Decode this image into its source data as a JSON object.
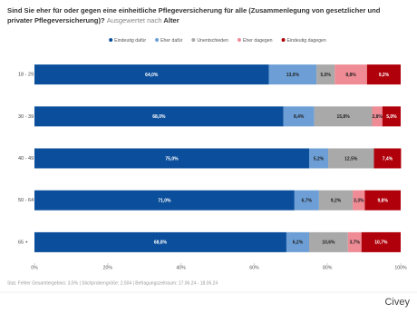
{
  "chart_data": {
    "type": "stacked-bar-horizontal",
    "title": "Sind Sie eher für oder gegen eine einheitliche Pflegeversicherung für alle (Zusammenlegung von gesetzlicher und privater Pflegeversicherung)?",
    "subtitle_prefix": "Ausgewertet nach",
    "subtitle": "Alter",
    "categories": [
      "18 - 29",
      "30 - 39",
      "40 - 49",
      "50 - 64",
      "65 +"
    ],
    "series": [
      {
        "name": "Eindeutig dafür",
        "color": "#0b4f9c",
        "values": [
          64.0,
          68.0,
          75.0,
          71.0,
          68.8
        ],
        "value_labels": [
          "64,0%",
          "68,0%",
          "75,0%",
          "71,0%",
          "68,8%"
        ]
      },
      {
        "name": "Eher dafür",
        "color": "#6d9fd6",
        "values": [
          13.0,
          8.4,
          5.2,
          6.7,
          6.2
        ],
        "value_labels": [
          "13,0%",
          "8,4%",
          "5,2%",
          "6,7%",
          "6,2%"
        ]
      },
      {
        "name": "Unentschieden",
        "color": "#a9a9a9",
        "values": [
          5.0,
          15.8,
          12.5,
          9.2,
          10.6
        ],
        "value_labels": [
          "5,0%",
          "15,8%",
          "12,5%",
          "9,2%",
          "10,6%"
        ]
      },
      {
        "name": "Eher dagegen",
        "color": "#ef8b95",
        "values": [
          8.8,
          2.8,
          0,
          3.3,
          3.7
        ],
        "value_labels": [
          "8,8%",
          "2,8%",
          null,
          "3,3%",
          "3,7%"
        ]
      },
      {
        "name": "Eindeutig dagegen",
        "color": "#b0000b",
        "values": [
          9.2,
          5.0,
          7.4,
          9.8,
          10.7
        ],
        "value_labels": [
          "9,2%",
          "5,0%",
          "7,4%",
          "9,8%",
          "10,7%"
        ]
      }
    ],
    "xlim": [
      0,
      100
    ],
    "xticks": [
      {
        "value": 0,
        "label": "0%"
      },
      {
        "value": 20,
        "label": "20%"
      },
      {
        "value": 40,
        "label": "40%"
      },
      {
        "value": 60,
        "label": "60%"
      },
      {
        "value": 80,
        "label": "80%"
      },
      {
        "value": 100,
        "label": "100%"
      }
    ],
    "legend": "top",
    "footer": "Stat. Fehler Gesamtergebnis: 3,5% | Stichprobengröße: 2.504 | Befragungszeitraum: 17.06.24 - 18.06.24",
    "brand": "Civey"
  }
}
